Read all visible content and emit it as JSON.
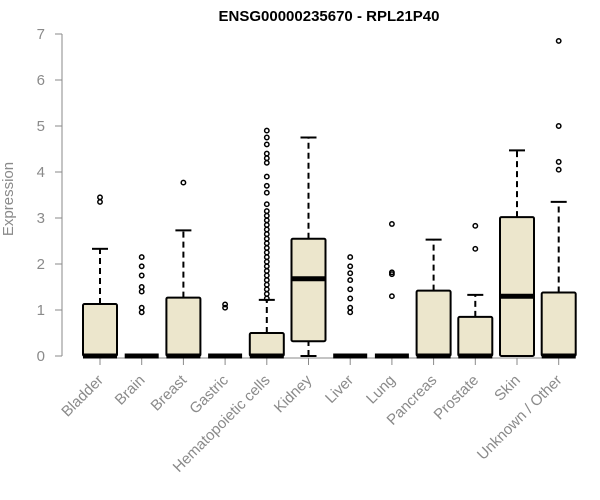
{
  "chart_data": {
    "type": "boxplot",
    "title": "ENSG00000235670 - RPL21P40",
    "xlabel": "",
    "ylabel": "Expression",
    "ylim": [
      0,
      7
    ],
    "yticks": [
      "0",
      "1",
      "2",
      "3",
      "4",
      "5",
      "6",
      "7"
    ],
    "grid": false,
    "box_fill": "#ece6cc",
    "categories": [
      "Bladder",
      "Brain",
      "Breast",
      "Gastric",
      "Hematopoietic cells",
      "Kidney",
      "Liver",
      "Lung",
      "Pancreas",
      "Prostate",
      "Skin",
      "Unknown / Other"
    ],
    "boxes": [
      {
        "q1": 0,
        "median": 0,
        "q3": 1.13,
        "whisker_low": 0,
        "whisker_high": 2.33,
        "outliers": [
          3.35,
          3.45
        ]
      },
      {
        "q1": 0,
        "median": 0,
        "q3": 0,
        "whisker_low": 0,
        "whisker_high": 0,
        "outliers": [
          0.95,
          1.05,
          1.4,
          1.5,
          1.75,
          1.95,
          2.15
        ]
      },
      {
        "q1": 0,
        "median": 0,
        "q3": 1.27,
        "whisker_low": 0,
        "whisker_high": 2.73,
        "outliers": [
          3.77
        ]
      },
      {
        "q1": 0,
        "median": 0,
        "q3": 0,
        "whisker_low": 0,
        "whisker_high": 0,
        "outliers": [
          1.05,
          1.12
        ]
      },
      {
        "q1": 0,
        "median": 0,
        "q3": 0.5,
        "whisker_low": 0,
        "whisker_high": 1.22,
        "outliers": [
          1.25,
          1.35,
          1.45,
          1.55,
          1.65,
          1.75,
          1.85,
          1.95,
          2.05,
          2.15,
          2.25,
          2.35,
          2.45,
          2.55,
          2.65,
          2.75,
          2.85,
          2.95,
          3.05,
          3.15,
          3.3,
          3.55,
          3.7,
          3.9,
          4.2,
          4.3,
          4.4,
          4.6,
          4.75,
          4.9
        ]
      },
      {
        "q1": 0.32,
        "median": 1.68,
        "q3": 2.55,
        "whisker_low": 0,
        "whisker_high": 4.75,
        "outliers": []
      },
      {
        "q1": 0,
        "median": 0,
        "q3": 0,
        "whisker_low": 0,
        "whisker_high": 0,
        "outliers": [
          0.95,
          1.05,
          1.25,
          1.45,
          1.65,
          1.8,
          1.95,
          2.15
        ]
      },
      {
        "q1": 0,
        "median": 0,
        "q3": 0,
        "whisker_low": 0,
        "whisker_high": 0,
        "outliers": [
          1.3,
          1.78,
          1.82,
          2.87
        ]
      },
      {
        "q1": 0,
        "median": 0,
        "q3": 1.42,
        "whisker_low": 0,
        "whisker_high": 2.53,
        "outliers": []
      },
      {
        "q1": 0,
        "median": 0,
        "q3": 0.85,
        "whisker_low": 0,
        "whisker_high": 1.33,
        "outliers": [
          2.33,
          2.83
        ]
      },
      {
        "q1": 0,
        "median": 1.3,
        "q3": 3.02,
        "whisker_low": 0,
        "whisker_high": 4.47,
        "outliers": []
      },
      {
        "q1": 0,
        "median": 0,
        "q3": 1.38,
        "whisker_low": 0,
        "whisker_high": 3.35,
        "outliers": [
          4.05,
          4.22,
          5.0,
          6.85
        ]
      }
    ]
  }
}
